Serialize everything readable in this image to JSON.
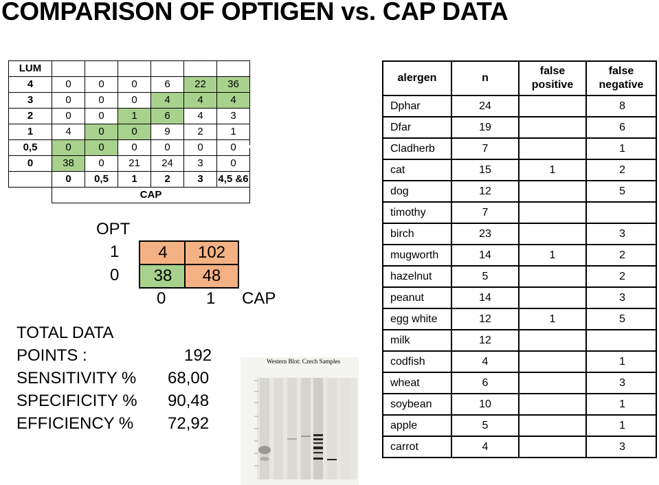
{
  "title": "COMPARISON OF OPTIGEN vs. CAP DATA",
  "lum_table": {
    "corner": "LUM",
    "rows": [
      {
        "label": "4",
        "cells": [
          "0",
          "0",
          "0",
          "6",
          "22",
          "36"
        ]
      },
      {
        "label": "3",
        "cells": [
          "0",
          "0",
          "0",
          "4",
          "4",
          "4"
        ]
      },
      {
        "label": "2",
        "cells": [
          "0",
          "0",
          "1",
          "6",
          "4",
          "3"
        ]
      },
      {
        "label": "1",
        "cells": [
          "4",
          "0",
          "0",
          "9",
          "2",
          "1"
        ]
      },
      {
        "label": "0,5",
        "cells": [
          "0",
          "0",
          "0",
          "0",
          "0",
          "0"
        ]
      },
      {
        "label": "0",
        "cells": [
          "38",
          "0",
          "21",
          "24",
          "3",
          "0"
        ]
      }
    ],
    "col_headers": [
      "0",
      "0,5",
      "1",
      "2",
      "3",
      "4,5 &6"
    ],
    "axis_label": "CAP"
  },
  "opt_matrix": {
    "row_axis": "OPT",
    "rows": [
      {
        "label": "1",
        "cells": [
          "4",
          "102"
        ]
      },
      {
        "label": "0",
        "cells": [
          "38",
          "48"
        ]
      }
    ],
    "col_labels": [
      "0",
      "1"
    ],
    "col_axis": "CAP"
  },
  "stats": {
    "total_label_1": "TOTAL DATA",
    "total_label_2": "POINTS :",
    "total_value": "192",
    "sens_label": "SENSITIVITY %",
    "sens_value": "68,00",
    "spec_label": "SPECIFICITY %",
    "spec_value": "90,48",
    "eff_label": "EFFICIENCY %",
    "eff_value": "72,92"
  },
  "blot": {
    "title": "Western Blot: Czech Samples"
  },
  "allergen_table": {
    "headers": {
      "allergen": "alergen",
      "n": "n",
      "fp": "false positive",
      "fn": "false negative"
    },
    "rows": [
      {
        "allergen": "Dphar",
        "n": "24",
        "fp": "",
        "fn": "8"
      },
      {
        "allergen": "Dfar",
        "n": "19",
        "fp": "",
        "fn": "6"
      },
      {
        "allergen": "Cladherb",
        "n": "7",
        "fp": "",
        "fn": "1"
      },
      {
        "allergen": "cat",
        "n": "15",
        "fp": "1",
        "fn": "2"
      },
      {
        "allergen": "dog",
        "n": "12",
        "fp": "",
        "fn": "5"
      },
      {
        "allergen": "timothy",
        "n": "7",
        "fp": "",
        "fn": ""
      },
      {
        "allergen": "birch",
        "n": "23",
        "fp": "",
        "fn": "3"
      },
      {
        "allergen": "mugworth",
        "n": "14",
        "fp": "1",
        "fn": "2"
      },
      {
        "allergen": "hazelnut",
        "n": "5",
        "fp": "",
        "fn": "2"
      },
      {
        "allergen": "peanut",
        "n": "14",
        "fp": "",
        "fn": "3"
      },
      {
        "allergen": "egg white",
        "n": "12",
        "fp": "1",
        "fn": "5"
      },
      {
        "allergen": "milk",
        "n": "12",
        "fp": "",
        "fn": ""
      },
      {
        "allergen": "codfish",
        "n": "4",
        "fp": "",
        "fn": "1"
      },
      {
        "allergen": "wheat",
        "n": "6",
        "fp": "",
        "fn": "3"
      },
      {
        "allergen": "soybean",
        "n": "10",
        "fp": "",
        "fn": "1"
      },
      {
        "allergen": "apple",
        "n": "5",
        "fp": "",
        "fn": "1"
      },
      {
        "allergen": "carrot",
        "n": "4",
        "fp": "",
        "fn": "3"
      }
    ]
  }
}
